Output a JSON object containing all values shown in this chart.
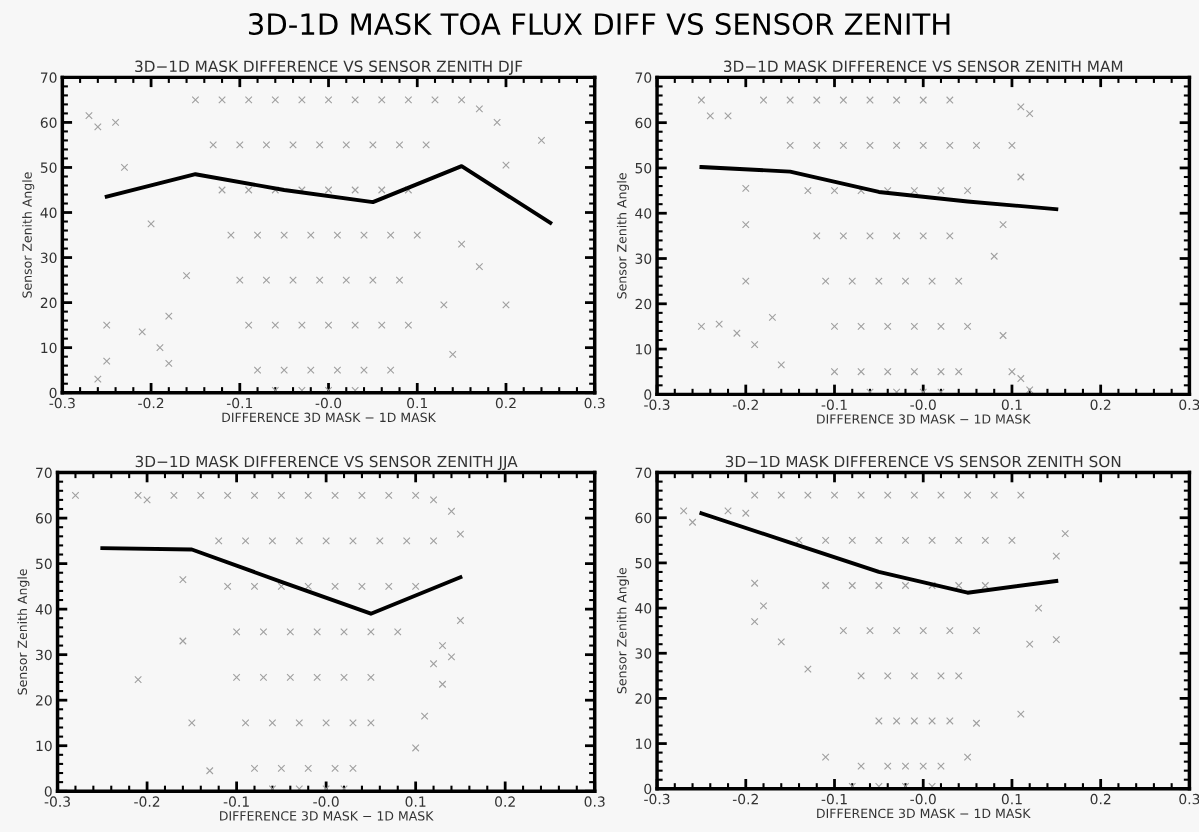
{
  "chart_data": [
    {
      "type": "other",
      "title": "3D-1D MASK TOA FLUX DIFF VS SENSOR ZENITH"
    },
    {
      "type": "scatter",
      "title": "3D−1D MASK DIFFERENCE VS SENSOR ZENITH DJF",
      "xlabel": "DIFFERENCE 3D MASK − 1D MASK",
      "ylabel": "Sensor Zenith Angle",
      "xlim": [
        -0.3,
        0.3
      ],
      "ylim": [
        0,
        70
      ],
      "xticks": [
        {
          "value": -0.3,
          "label": "-0.3"
        },
        {
          "value": -0.2,
          "label": "-0.2"
        },
        {
          "value": -0.1,
          "label": "-0.1"
        },
        {
          "value": 0,
          "label": "-0.0"
        },
        0.1,
        0.2,
        0.3
      ],
      "yticks": [
        0,
        10,
        20,
        30,
        40,
        50,
        60,
        70
      ],
      "grid": false,
      "series": [
        {
          "type": "scatter",
          "color": "#a0a0a0",
          "marker": "cross",
          "x": [
            -0.27,
            -0.26,
            -0.24,
            -0.23,
            -0.25,
            -0.25,
            -0.26,
            -0.21,
            -0.2,
            -0.19,
            -0.18,
            -0.18,
            -0.16,
            0.2,
            0.2,
            0.24,
            0.19,
            0.17,
            0.14,
            0.15,
            0.13,
            0.17,
            0.15,
            -0.15,
            -0.12,
            -0.09,
            -0.06,
            -0.03,
            0,
            0.03,
            0.06,
            0.09,
            0.12,
            -0.13,
            -0.1,
            -0.07,
            -0.04,
            -0.01,
            0.02,
            0.05,
            0.08,
            0.11,
            -0.12,
            -0.09,
            -0.06,
            -0.03,
            0,
            0.03,
            0.06,
            0.09,
            -0.11,
            -0.08,
            -0.05,
            -0.02,
            0.01,
            0.04,
            0.07,
            0.1,
            -0.1,
            -0.07,
            -0.04,
            -0.01,
            0.02,
            0.05,
            0.08,
            -0.09,
            -0.06,
            -0.03,
            0,
            0.03,
            0.06,
            0.09,
            -0.08,
            -0.05,
            -0.02,
            0.01,
            0.04,
            0.07,
            -0.06,
            -0.03,
            0,
            0.03
          ],
          "values": [
            61.5,
            59,
            60,
            50,
            15,
            7,
            3,
            13.5,
            37.5,
            10,
            17,
            6.5,
            26,
            50.5,
            19.5,
            56,
            60,
            28,
            8.5,
            33,
            19.5,
            63,
            65,
            65,
            65,
            65,
            65,
            65,
            65,
            65,
            65,
            65,
            65,
            55,
            55,
            55,
            55,
            55,
            55,
            55,
            55,
            55,
            45,
            45,
            45,
            45,
            45,
            45,
            45,
            45,
            35,
            35,
            35,
            35,
            35,
            35,
            35,
            35,
            25,
            25,
            25,
            25,
            25,
            25,
            25,
            15,
            15,
            15,
            15,
            15,
            15,
            15,
            5,
            5,
            5,
            5,
            5,
            5,
            0.5,
            0.5,
            0.5,
            0.5
          ]
        },
        {
          "type": "line",
          "color": "#000000",
          "marker": "none",
          "line_style": "solid",
          "x": [
            -0.25,
            -0.15,
            -0.05,
            0.05,
            0.15,
            0.25
          ],
          "values": [
            43.5,
            48.5,
            45,
            42.3,
            50.3,
            37.7
          ]
        }
      ]
    },
    {
      "type": "scatter",
      "title": "3D−1D MASK DIFFERENCE VS SENSOR ZENITH MAM",
      "xlabel": "DIFFERENCE 3D MASK − 1D MASK",
      "ylabel": "Sensor Zenith Angle",
      "xlim": [
        -0.3,
        0.3
      ],
      "ylim": [
        0,
        70
      ],
      "xticks": [
        {
          "value": -0.3,
          "label": "-0.3"
        },
        {
          "value": -0.2,
          "label": "-0.2"
        },
        {
          "value": -0.1,
          "label": "-0.1"
        },
        {
          "value": 0,
          "label": "-0.0"
        },
        0.1,
        0.2,
        0.3
      ],
      "yticks": [
        0,
        10,
        20,
        30,
        40,
        50,
        60,
        70
      ],
      "grid": false,
      "series": [
        {
          "type": "scatter",
          "color": "#a0a0a0",
          "marker": "cross",
          "x": [
            -0.25,
            -0.24,
            -0.22,
            -0.25,
            -0.23,
            -0.21,
            -0.2,
            -0.2,
            -0.19,
            -0.17,
            -0.16,
            -0.2,
            0.1,
            0.11,
            0.12,
            0.11,
            0.09,
            0.1,
            0.11,
            0.09,
            0.08,
            0.12,
            -0.18,
            -0.15,
            -0.12,
            -0.09,
            -0.06,
            -0.03,
            0,
            0.03,
            -0.15,
            -0.12,
            -0.09,
            -0.06,
            -0.03,
            0,
            0.03,
            0.06,
            -0.13,
            -0.1,
            -0.07,
            -0.04,
            -0.01,
            0.02,
            0.05,
            -0.12,
            -0.09,
            -0.06,
            -0.03,
            0,
            0.03,
            -0.11,
            -0.08,
            -0.05,
            -0.02,
            0.01,
            0.04,
            -0.1,
            -0.07,
            -0.04,
            -0.01,
            0.02,
            0.05,
            -0.1,
            -0.07,
            -0.04,
            -0.01,
            0.02,
            0.04,
            -0.06,
            -0.03,
            0,
            0.02
          ],
          "values": [
            65,
            61.5,
            61.5,
            15,
            15.5,
            13.5,
            45.5,
            37.5,
            11,
            17,
            6.5,
            25,
            55,
            48,
            62,
            63.5,
            37.5,
            5,
            3.5,
            13,
            30.5,
            1,
            65,
            65,
            65,
            65,
            65,
            65,
            65,
            65,
            55,
            55,
            55,
            55,
            55,
            55,
            55,
            55,
            45,
            45,
            45,
            45,
            45,
            45,
            45,
            35,
            35,
            35,
            35,
            35,
            35,
            25,
            25,
            25,
            25,
            25,
            25,
            15,
            15,
            15,
            15,
            15,
            15,
            5,
            5,
            5,
            5,
            5,
            5,
            0.5,
            0.5,
            0.5,
            0.5
          ]
        },
        {
          "type": "line",
          "color": "#000000",
          "marker": "none",
          "line_style": "solid",
          "x": [
            -0.25,
            -0.15,
            -0.05,
            0.05,
            0.15
          ],
          "values": [
            50.2,
            49.2,
            44.7,
            42.6,
            40.9
          ]
        }
      ]
    },
    {
      "type": "scatter",
      "title": "3D−1D MASK DIFFERENCE VS SENSOR ZENITH JJA",
      "xlabel": "DIFFERENCE 3D MASK − 1D MASK",
      "ylabel": "Sensor Zenith Angle",
      "xlim": [
        -0.3,
        0.3
      ],
      "ylim": [
        0,
        70
      ],
      "xticks": [
        {
          "value": -0.3,
          "label": "-0.3"
        },
        {
          "value": -0.2,
          "label": "-0.2"
        },
        {
          "value": -0.1,
          "label": "-0.1"
        },
        {
          "value": 0,
          "label": "-0.0"
        },
        0.1,
        0.2,
        0.3
      ],
      "yticks": [
        0,
        10,
        20,
        30,
        40,
        50,
        60,
        70
      ],
      "grid": false,
      "series": [
        {
          "type": "scatter",
          "color": "#a0a0a0",
          "marker": "cross",
          "x": [
            -0.28,
            -0.21,
            -0.21,
            -0.2,
            -0.16,
            -0.15,
            -0.16,
            -0.13,
            0.15,
            0.15,
            0.14,
            0.13,
            0.1,
            0.11,
            0.13,
            0.12,
            0.14,
            0.12,
            -0.17,
            -0.14,
            -0.11,
            -0.08,
            -0.05,
            -0.02,
            0.01,
            0.04,
            0.07,
            0.1,
            -0.12,
            -0.09,
            -0.06,
            -0.03,
            0,
            0.03,
            0.06,
            0.09,
            0.12,
            -0.11,
            -0.08,
            -0.05,
            -0.02,
            0.01,
            0.04,
            0.07,
            0.1,
            -0.1,
            -0.07,
            -0.04,
            -0.01,
            0.02,
            0.05,
            0.08,
            -0.1,
            -0.07,
            -0.04,
            -0.01,
            0.02,
            0.05,
            -0.09,
            -0.06,
            -0.03,
            0,
            0.03,
            0.05,
            -0.08,
            -0.05,
            -0.02,
            0.01,
            0.03,
            -0.06,
            -0.03,
            0,
            0.02
          ],
          "values": [
            65,
            65,
            24.5,
            64,
            46.5,
            15,
            33,
            4.5,
            56.5,
            37.5,
            29.5,
            23.5,
            9.5,
            16.5,
            32,
            28,
            61.5,
            64,
            65,
            65,
            65,
            65,
            65,
            65,
            65,
            65,
            65,
            65,
            55,
            55,
            55,
            55,
            55,
            55,
            55,
            55,
            55,
            45,
            45,
            45,
            45,
            45,
            45,
            45,
            45,
            35,
            35,
            35,
            35,
            35,
            35,
            35,
            25,
            25,
            25,
            25,
            25,
            25,
            15,
            15,
            15,
            15,
            15,
            15,
            5,
            5,
            5,
            5,
            5,
            0.5,
            0.5,
            0.5,
            0.5
          ]
        },
        {
          "type": "line",
          "color": "#000000",
          "marker": "none",
          "line_style": "solid",
          "x": [
            -0.25,
            -0.15,
            -0.05,
            0.05,
            0.15
          ],
          "values": [
            53.4,
            53.1,
            46,
            39,
            47
          ]
        }
      ]
    },
    {
      "type": "scatter",
      "title": "3D−1D MASK DIFFERENCE VS SENSOR ZENITH SON",
      "xlabel": "DIFFERENCE 3D MASK − 1D MASK",
      "ylabel": "Sensor Zenith Angle",
      "xlim": [
        -0.3,
        0.3
      ],
      "ylim": [
        0,
        70
      ],
      "xticks": [
        {
          "value": -0.3,
          "label": "-0.3"
        },
        {
          "value": -0.2,
          "label": "-0.2"
        },
        {
          "value": -0.1,
          "label": "-0.1"
        },
        {
          "value": 0,
          "label": "-0.0"
        },
        0.1,
        0.2,
        0.3
      ],
      "yticks": [
        0,
        10,
        20,
        30,
        40,
        50,
        60,
        70
      ],
      "grid": false,
      "series": [
        {
          "type": "scatter",
          "color": "#a0a0a0",
          "marker": "cross",
          "x": [
            -0.27,
            -0.26,
            -0.22,
            -0.2,
            -0.19,
            -0.19,
            -0.18,
            -0.16,
            -0.13,
            -0.11,
            0.16,
            0.15,
            0.15,
            0.11,
            0.13,
            0.12,
            0.05,
            0.06,
            0.11,
            -0.19,
            -0.16,
            -0.13,
            -0.1,
            -0.07,
            -0.04,
            -0.01,
            0.02,
            0.05,
            0.08,
            -0.14,
            -0.11,
            -0.08,
            -0.05,
            -0.02,
            0.01,
            0.04,
            0.07,
            0.1,
            -0.11,
            -0.08,
            -0.05,
            -0.02,
            0.01,
            0.04,
            0.07,
            -0.09,
            -0.06,
            -0.03,
            0,
            0.03,
            0.06,
            -0.07,
            -0.04,
            -0.01,
            0.02,
            0.04,
            -0.05,
            -0.03,
            -0.01,
            0.01,
            0.03,
            -0.07,
            -0.04,
            -0.02,
            0,
            0.02,
            -0.08,
            -0.05,
            -0.02,
            0.01
          ],
          "values": [
            61.5,
            59,
            61.5,
            61,
            45.5,
            37,
            40.5,
            32.5,
            26.5,
            7,
            56.5,
            51.5,
            33,
            16.5,
            40,
            32,
            7,
            14.5,
            65,
            65,
            65,
            65,
            65,
            65,
            65,
            65,
            65,
            65,
            65,
            55,
            55,
            55,
            55,
            55,
            55,
            55,
            55,
            55,
            45,
            45,
            45,
            45,
            45,
            45,
            45,
            35,
            35,
            35,
            35,
            35,
            35,
            25,
            25,
            25,
            25,
            25,
            15,
            15,
            15,
            15,
            15,
            5,
            5,
            5,
            5,
            5,
            0.5,
            0.5,
            0.5,
            0.5
          ]
        },
        {
          "type": "line",
          "color": "#000000",
          "marker": "none",
          "line_style": "solid",
          "x": [
            -0.25,
            -0.15,
            -0.05,
            0.05,
            0.15
          ],
          "values": [
            61,
            54.5,
            48,
            43.4,
            46
          ]
        }
      ]
    }
  ]
}
